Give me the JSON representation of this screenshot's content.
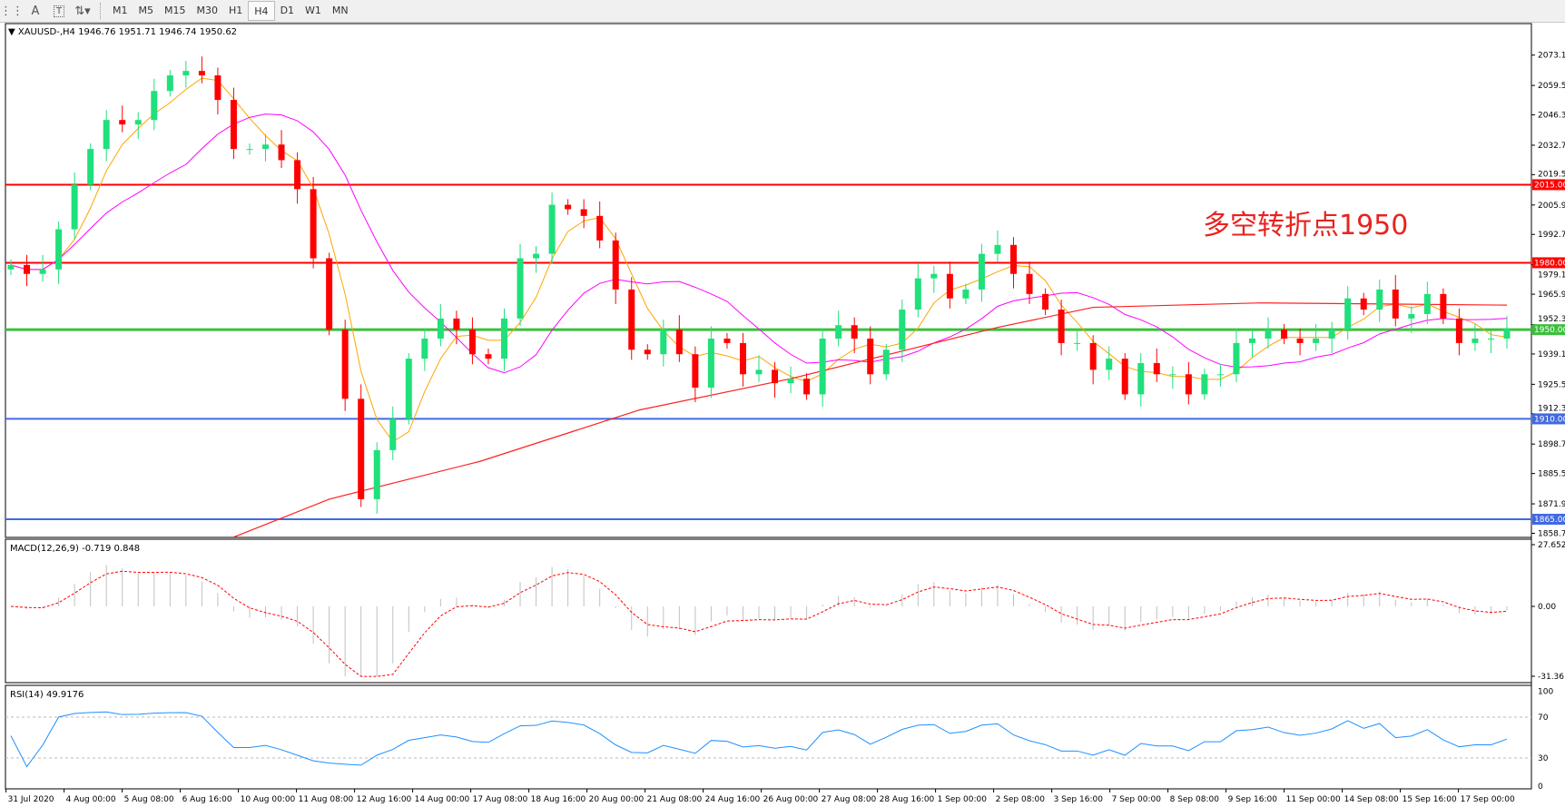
{
  "toolbar": {
    "icons": [
      "period-separators-icon",
      "text-icon",
      "text-label-icon",
      "arrows-icon"
    ],
    "text_tool": "A",
    "timeframes": [
      "M1",
      "M5",
      "M15",
      "M30",
      "H1",
      "H4",
      "D1",
      "W1",
      "MN"
    ],
    "active_timeframe": "H4"
  },
  "chart": {
    "header": "XAUUSD-,H4  1946.76 1951.71 1946.74 1950.62",
    "annotation": "多空转折点1950",
    "colors": {
      "bull": "#1fe07a",
      "bear": "#ff0000",
      "ma_fast": "#ffa500",
      "ma_mid": "#ff00ff",
      "ma_slow": "#ff2020",
      "level_red": "#ff0000",
      "level_green": "#3cbf3c",
      "level_blue": "#4169e1",
      "rsi": "#1e90ff",
      "macd_hist": "#c0c0c0",
      "macd_signal": "#ff0000"
    }
  },
  "price_axis": [
    "2073.10",
    "2059.50",
    "2046.30",
    "2032.70",
    "2019.50",
    "2005.90",
    "1992.70",
    "1979.10",
    "1965.90",
    "1952.30",
    "1939.10",
    "1925.50",
    "1912.30",
    "1898.70",
    "1885.50",
    "1871.90",
    "1858.70"
  ],
  "levels": [
    {
      "price": 2015,
      "label": "2015.00",
      "color": "#ff0000"
    },
    {
      "price": 1980,
      "label": "1980.00",
      "color": "#ff0000"
    },
    {
      "price": 1950,
      "label": "1950.00",
      "color": "#3cbf3c"
    },
    {
      "price": 1910,
      "label": "1910.00",
      "color": "#4169e1"
    },
    {
      "price": 1865,
      "label": "1865.00",
      "color": "#4169e1"
    }
  ],
  "macd": {
    "title": "MACD(12,26,9) -0.719 0.848",
    "axis": [
      "27.652",
      "0.00",
      "-31.361"
    ]
  },
  "rsi": {
    "title": "RSI(14) 49.9176",
    "axis": [
      "100",
      "70",
      "30",
      "0"
    ]
  },
  "time_axis": [
    "31 Jul 2020",
    "4 Aug 00:00",
    "5 Aug 08:00",
    "6 Aug 16:00",
    "10 Aug 00:00",
    "11 Aug 08:00",
    "12 Aug 16:00",
    "14 Aug 00:00",
    "17 Aug 08:00",
    "18 Aug 16:00",
    "20 Aug 00:00",
    "21 Aug 08:00",
    "24 Aug 16:00",
    "26 Aug 00:00",
    "27 Aug 08:00",
    "28 Aug 16:00",
    "1 Sep 00:00",
    "2 Sep 08:00",
    "3 Sep 16:00",
    "7 Sep 00:00",
    "8 Sep 08:00",
    "9 Sep 16:00",
    "11 Sep 00:00",
    "14 Sep 08:00",
    "15 Sep 16:00",
    "17 Sep 00:00"
  ],
  "chart_data": {
    "type": "candlestick",
    "ylim": [
      1855,
      2080
    ],
    "closes": [
      1979,
      1975,
      1977,
      1995,
      2015,
      2031,
      2044,
      2042,
      2044,
      2057,
      2064,
      2066,
      2064,
      2053,
      2031,
      2031,
      2033,
      2026,
      2013,
      1982,
      1950,
      1919,
      1874,
      1896,
      1910,
      1937,
      1946,
      1955,
      1950,
      1939,
      1937,
      1955,
      1982,
      1984,
      2006,
      2004,
      2001,
      1990,
      1968,
      1941,
      1939,
      1950,
      1939,
      1924,
      1946,
      1944,
      1930,
      1932,
      1926,
      1928,
      1921,
      1946,
      1952,
      1946,
      1930,
      1941,
      1959,
      1973,
      1975,
      1964,
      1968,
      1984,
      1988,
      1975,
      1966,
      1959,
      1944,
      1944,
      1932,
      1937,
      1921,
      1935,
      1930,
      1930,
      1921,
      1930,
      1930,
      1944,
      1946,
      1950,
      1946,
      1944,
      1946,
      1950,
      1964,
      1959,
      1968,
      1955,
      1957,
      1966,
      1955,
      1944,
      1946,
      1946,
      1950.62
    ],
    "ma_slow": [
      [
        14,
        1857
      ],
      [
        20,
        1874
      ],
      [
        29.5,
        1891
      ],
      [
        39.5,
        1914
      ],
      [
        49,
        1928
      ],
      [
        62,
        1951
      ],
      [
        68,
        1960
      ],
      [
        78.5,
        1962
      ],
      [
        94,
        1961
      ]
    ],
    "macd_range": [
      -31.361,
      27.652
    ],
    "rsi_levels": [
      70,
      30
    ]
  }
}
